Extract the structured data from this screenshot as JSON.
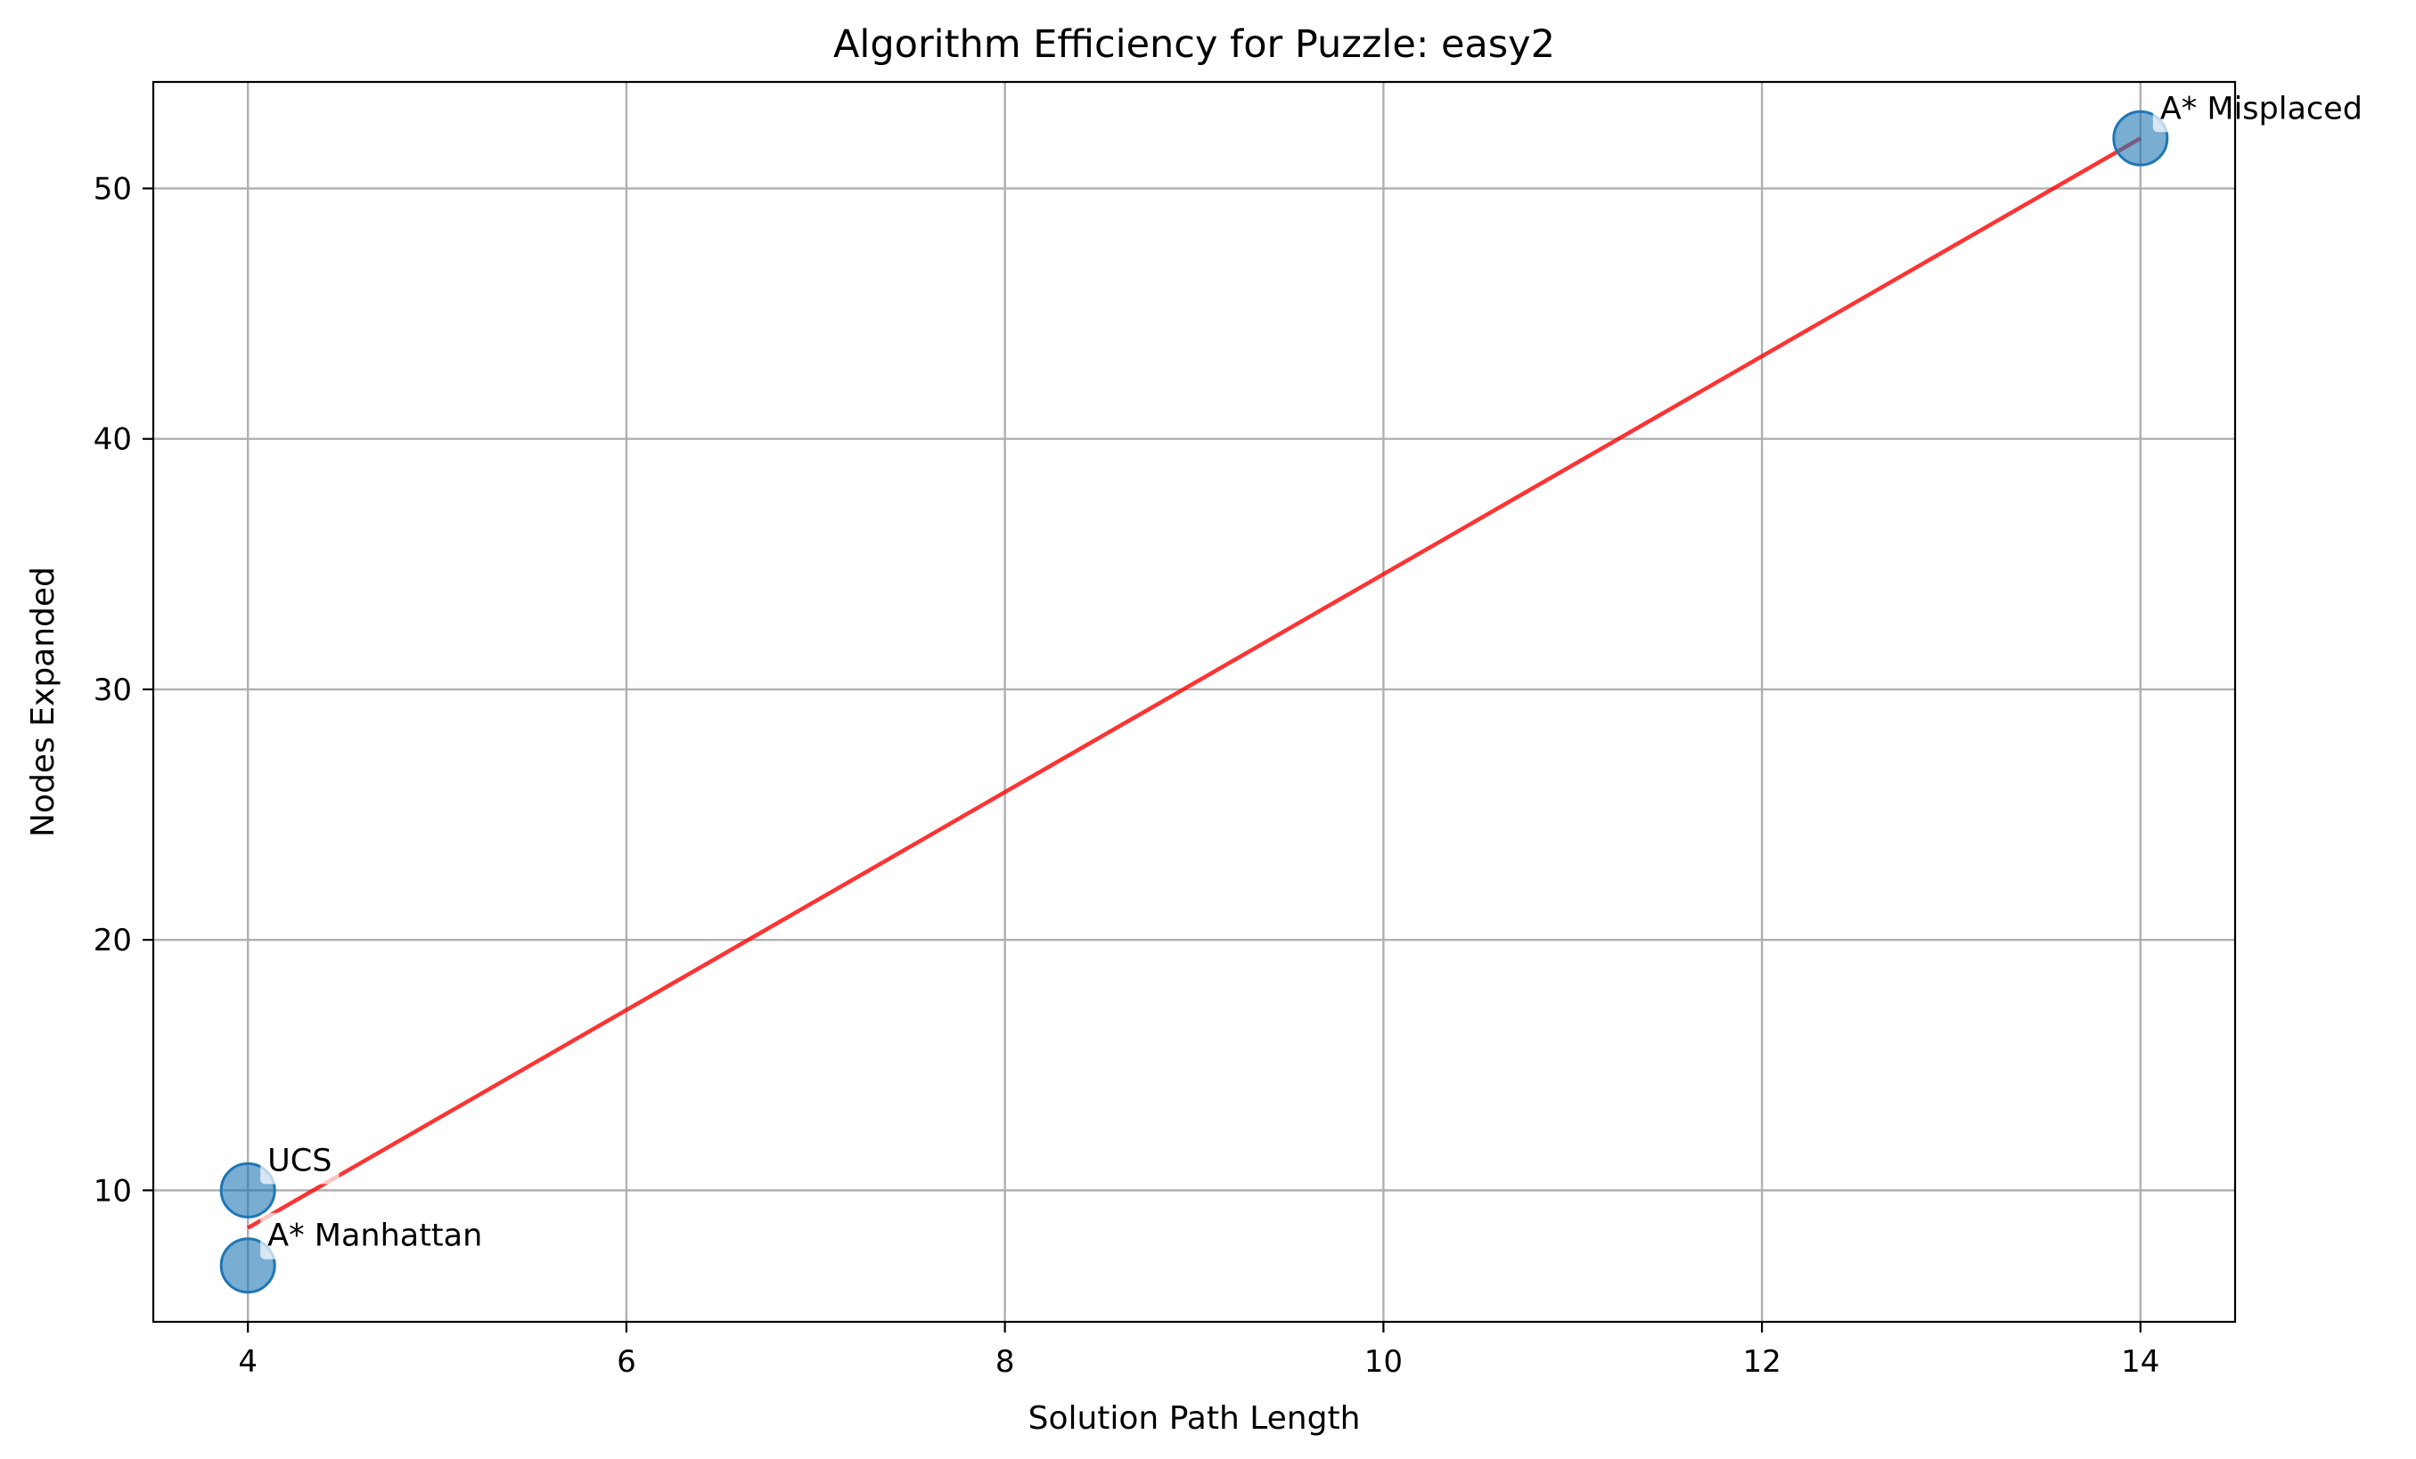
{
  "chart_data": {
    "type": "scatter",
    "title": "Algorithm Efficiency for Puzzle: easy2",
    "xlabel": "Solution Path Length",
    "ylabel": "Nodes Expanded",
    "xlim": [
      3.5,
      14.5
    ],
    "ylim": [
      4.75,
      54.25
    ],
    "xticks": [
      4,
      6,
      8,
      10,
      12,
      14
    ],
    "yticks": [
      10,
      20,
      30,
      40,
      50
    ],
    "grid": true,
    "points": [
      {
        "label": "UCS",
        "x": 4,
        "y": 10
      },
      {
        "label": "A* Manhattan",
        "x": 4,
        "y": 7
      },
      {
        "label": "A* Misplaced",
        "x": 14,
        "y": 52
      }
    ],
    "trend_line": {
      "x": [
        4,
        14
      ],
      "y": [
        8.5,
        52
      ]
    },
    "colors": {
      "marker_fill": "#1f77b4",
      "marker_edge": "#1f77b4",
      "trend_line": "#ff0000",
      "grid": "#b0b0b0"
    }
  }
}
